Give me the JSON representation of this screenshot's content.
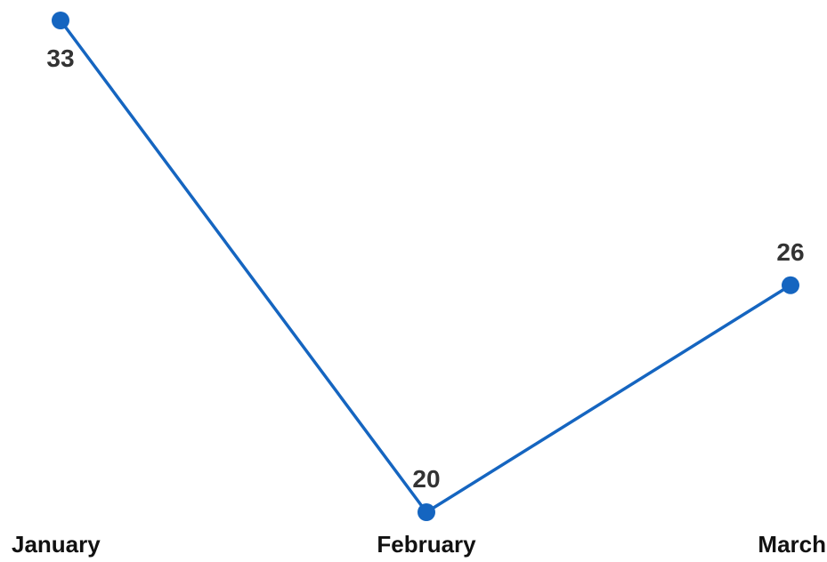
{
  "chart_data": {
    "type": "line",
    "categories": [
      "January",
      "February",
      "March"
    ],
    "series": [
      {
        "values": [
          33,
          20,
          26
        ],
        "color": "#1565c0"
      }
    ],
    "data_labels": [
      "33",
      "20",
      "26"
    ],
    "ylim": [
      20,
      33
    ],
    "grid": false,
    "legend": "none"
  }
}
